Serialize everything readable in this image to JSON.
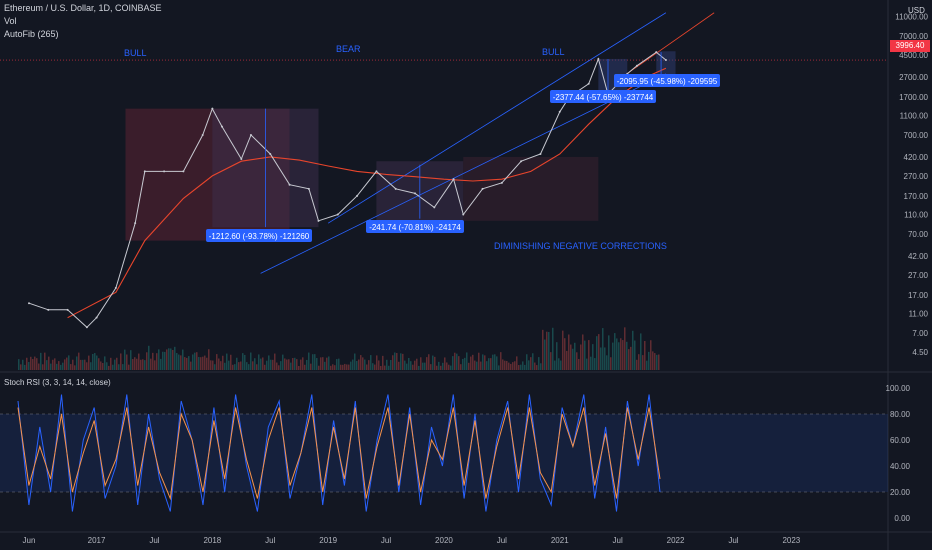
{
  "header": {
    "symbol": "Ethereum / U.S. Dollar, 1D, COINBASE",
    "vol": "Vol",
    "autofib": "AutoFib (265)"
  },
  "price_axis": {
    "currency": "USD",
    "last_price": "3996.40",
    "ticks": [
      "11000.00",
      "7000.00",
      "4500.00",
      "2700.00",
      "1700.00",
      "1100.00",
      "700.00",
      "420.00",
      "270.00",
      "170.00",
      "110.00",
      "70.00",
      "42.00",
      "27.00",
      "17.00",
      "11.00",
      "7.00",
      "4.50"
    ]
  },
  "rsi_panel": {
    "title": "Stoch RSI (3, 3, 14, 14, close)",
    "ticks": [
      "100.00",
      "80.00",
      "60.00",
      "40.00",
      "20.00",
      "0.00"
    ],
    "upper_band": 80,
    "lower_band": 20
  },
  "time_axis": [
    "Jun",
    "2017",
    "Jul",
    "2018",
    "Jul",
    "2019",
    "Jul",
    "2020",
    "Jul",
    "2021",
    "Jul",
    "2022",
    "Jul",
    "2023"
  ],
  "annotations": {
    "bull1": "BULL",
    "bear": "BEAR",
    "bull2": "BULL",
    "diminishing": "DIMINISHING NEGATIVE CORRECTIONS",
    "drop1": "-1212.60 (-93.78%) -121260",
    "drop2": "-241.74 (-70.81%) -24174",
    "drop3": "-2377.44 (-57.65%) -237744",
    "drop4": "-2095.95 (-45.98%) -209595"
  },
  "colors": {
    "background": "#131722",
    "price_line": "#5b7fa8",
    "ma_line": "#e8452c",
    "trend_channel": "#2962ff",
    "label_box": "#2962ff",
    "last_price": "#f23645",
    "rsi_k": "#2962ff",
    "rsi_d": "#f7924a",
    "rsi_band": "#2962ff"
  },
  "chart_data": {
    "type": "line",
    "title": "Ethereum / U.S. Dollar, 1D, COINBASE",
    "xlabel": "",
    "ylabel": "USD",
    "y_scale": "log",
    "ylim": [
      4.5,
      11000
    ],
    "series": [
      {
        "name": "Ethereum / U.S. Dollar",
        "x": [
          "2016-06",
          "2016-08",
          "2016-10",
          "2016-12",
          "2017-01",
          "2017-03",
          "2017-05",
          "2017-06",
          "2017-08",
          "2017-10",
          "2017-12",
          "2018-01",
          "2018-02",
          "2018-04",
          "2018-05",
          "2018-07",
          "2018-09",
          "2018-11",
          "2018-12",
          "2019-02",
          "2019-04",
          "2019-06",
          "2019-08",
          "2019-10",
          "2019-12",
          "2020-02",
          "2020-03",
          "2020-05",
          "2020-07",
          "2020-09",
          "2020-11",
          "2021-01",
          "2021-02",
          "2021-04",
          "2021-05",
          "2021-06",
          "2021-08",
          "2021-09",
          "2021-11",
          "2021-12"
        ],
        "values": [
          14,
          12,
          12,
          8,
          10,
          20,
          90,
          300,
          300,
          300,
          700,
          1290,
          850,
          400,
          700,
          450,
          220,
          200,
          95,
          110,
          170,
          300,
          200,
          180,
          130,
          250,
          110,
          200,
          230,
          380,
          450,
          1200,
          1700,
          2300,
          4100,
          1800,
          2900,
          3500,
          4800,
          3996
        ]
      }
    ],
    "moving_average": {
      "x": [
        "2016-10",
        "2017-03",
        "2017-06",
        "2017-10",
        "2018-01",
        "2018-04",
        "2018-07",
        "2018-10",
        "2019-01",
        "2019-04",
        "2019-07",
        "2019-10",
        "2020-01",
        "2020-04",
        "2020-07",
        "2020-10",
        "2021-01",
        "2021-04",
        "2021-07",
        "2021-10",
        "2021-12"
      ],
      "values": [
        10,
        18,
        60,
        160,
        270,
        380,
        420,
        390,
        340,
        300,
        280,
        265,
        250,
        240,
        250,
        300,
        450,
        900,
        1700,
        2700,
        3300
      ]
    },
    "trend_lines": [
      {
        "name": "channel-upper",
        "x": [
          "2019-01",
          "2021-12"
        ],
        "values": [
          90,
          12000
        ]
      },
      {
        "name": "channel-lower",
        "x": [
          "2018-06",
          "2021-12"
        ],
        "values": [
          28,
          2900
        ]
      },
      {
        "name": "projection",
        "x": [
          "2021-07",
          "2022-05"
        ],
        "values": [
          2500,
          12000
        ]
      }
    ],
    "corrections": [
      {
        "label": "-1212.60 (-93.78%) -121260",
        "from_x": "2018-01",
        "to_x": "2018-12",
        "from_y": 1290,
        "to_y": 82
      },
      {
        "label": "-241.74 (-70.81%) -24174",
        "from_x": "2019-06",
        "to_x": "2020-03",
        "from_y": 350,
        "to_y": 100
      },
      {
        "label": "-2377.44 (-57.65%) -237744",
        "from_x": "2021-05",
        "to_x": "2021-07",
        "from_y": 4100,
        "to_y": 1700
      },
      {
        "label": "-2095.95 (-45.98%) -209595",
        "from_x": "2021-11",
        "to_x": "2021-12",
        "from_y": 4800,
        "to_y": 2600
      }
    ],
    "stoch_rsi": {
      "type": "line",
      "ylim": [
        0,
        100
      ],
      "bands": [
        20,
        80
      ],
      "series": [
        {
          "name": "K",
          "values": [
            90,
            10,
            70,
            20,
            95,
            5,
            60,
            85,
            15,
            40,
            95,
            10,
            80,
            30,
            5,
            90,
            60,
            10,
            85,
            20,
            95,
            40,
            5,
            70,
            90,
            15,
            50,
            95,
            10,
            75,
            25,
            90,
            5,
            60,
            95,
            20,
            85,
            10,
            70,
            40,
            95,
            15,
            80,
            5,
            60,
            90,
            20,
            95,
            30,
            10,
            85,
            55,
            95,
            15,
            70,
            5,
            90,
            40,
            95,
            20
          ]
        },
        {
          "name": "D",
          "values": [
            85,
            25,
            55,
            30,
            80,
            20,
            50,
            75,
            25,
            45,
            85,
            25,
            70,
            35,
            15,
            80,
            60,
            20,
            75,
            30,
            85,
            45,
            15,
            60,
            85,
            25,
            50,
            85,
            20,
            70,
            30,
            85,
            15,
            55,
            85,
            25,
            80,
            20,
            60,
            45,
            85,
            25,
            75,
            15,
            55,
            85,
            30,
            85,
            35,
            20,
            80,
            55,
            85,
            25,
            65,
            15,
            85,
            45,
            85,
            30
          ]
        }
      ]
    }
  }
}
